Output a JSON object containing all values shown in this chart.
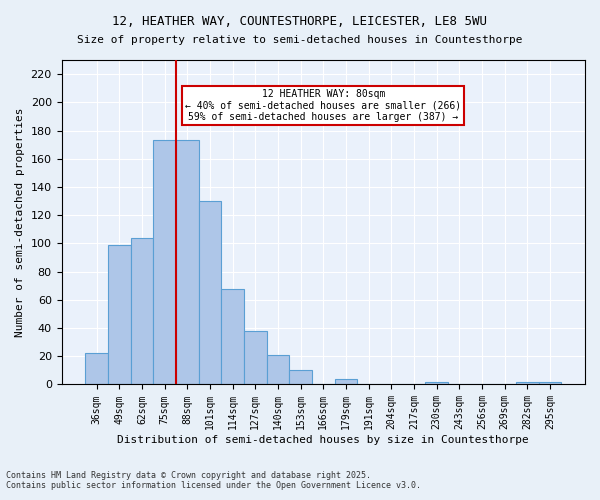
{
  "title1": "12, HEATHER WAY, COUNTESTHORPE, LEICESTER, LE8 5WU",
  "title2": "Size of property relative to semi-detached houses in Countesthorpe",
  "xlabel": "Distribution of semi-detached houses by size in Countesthorpe",
  "ylabel": "Number of semi-detached properties",
  "bin_labels": [
    "36sqm",
    "49sqm",
    "62sqm",
    "75sqm",
    "88sqm",
    "101sqm",
    "114sqm",
    "127sqm",
    "140sqm",
    "153sqm",
    "166sqm",
    "179sqm",
    "191sqm",
    "204sqm",
    "217sqm",
    "230sqm",
    "243sqm",
    "256sqm",
    "269sqm",
    "282sqm",
    "295sqm"
  ],
  "bar_values": [
    22,
    99,
    104,
    173,
    173,
    130,
    68,
    38,
    21,
    10,
    0,
    4,
    0,
    0,
    0,
    2,
    0,
    0,
    0,
    2,
    2
  ],
  "bar_color": "#aec6e8",
  "bar_edge_color": "#5a9fd4",
  "vline_x": 3.5,
  "vline_label": "12 HEATHER WAY: 80sqm",
  "annotation_line1": "← 40% of semi-detached houses are smaller (266)",
  "annotation_line2": "59% of semi-detached houses are larger (387) →",
  "vline_color": "#cc0000",
  "ylim": [
    0,
    230
  ],
  "yticks": [
    0,
    20,
    40,
    60,
    80,
    100,
    120,
    140,
    160,
    180,
    200,
    220
  ],
  "annotation_box_color": "#cc0000",
  "footer1": "Contains HM Land Registry data © Crown copyright and database right 2025.",
  "footer2": "Contains public sector information licensed under the Open Government Licence v3.0.",
  "bg_color": "#e8f0f8",
  "plot_bg_color": "#eaf1fb"
}
